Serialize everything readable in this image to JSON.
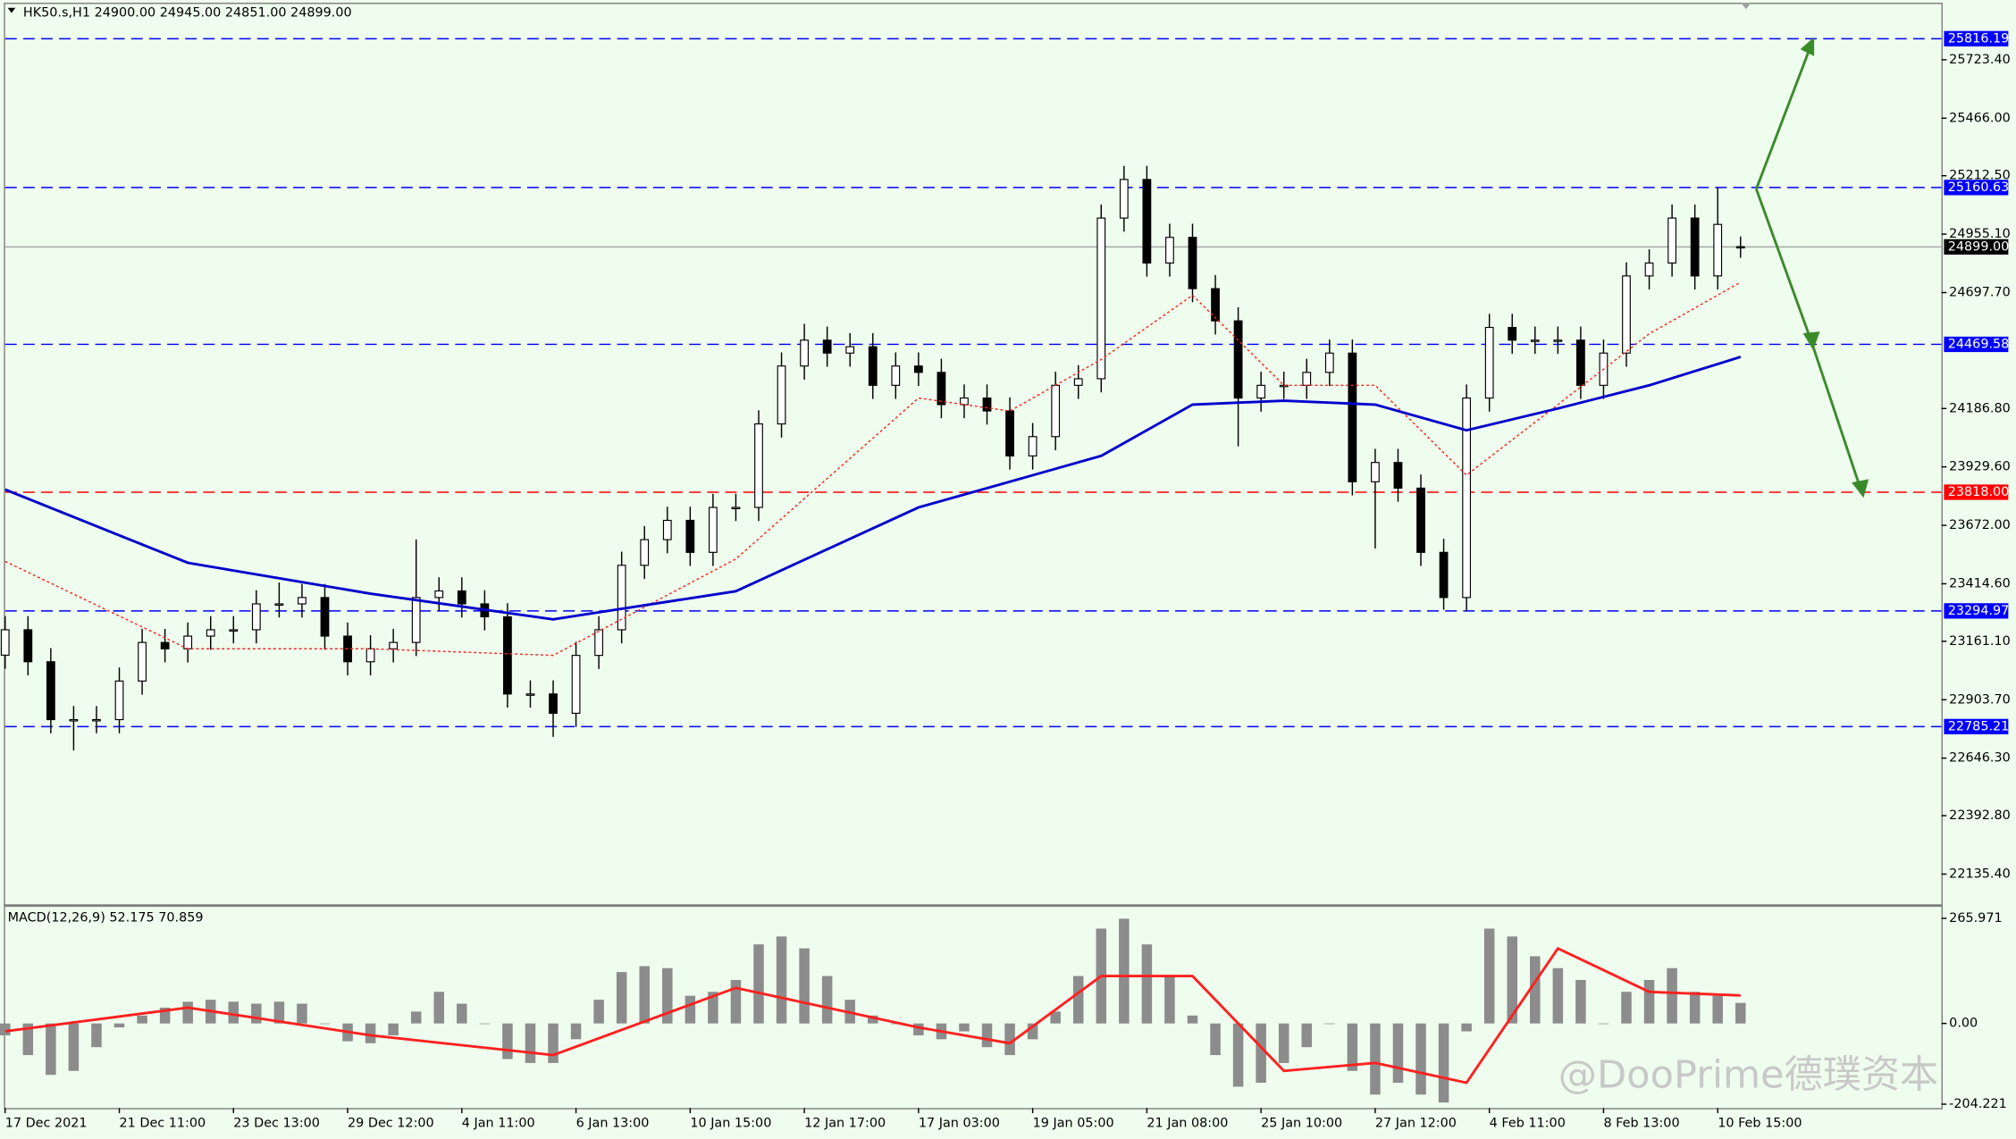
{
  "watermark": "@DooPrime德璞资本",
  "chart_data": [
    {
      "type": "candlestick",
      "title": "HK50.s,H1  24900.00 24945.00 24851.00 24899.00",
      "categories": [
        "17 Dec 2021",
        null,
        null,
        null,
        null,
        "21 Dec 11:00",
        null,
        null,
        null,
        null,
        "23 Dec 13:00",
        null,
        null,
        null,
        null,
        "29 Dec 12:00",
        null,
        null,
        null,
        null,
        "4 Jan 11:00",
        null,
        null,
        null,
        null,
        "6 Jan 13:00",
        null,
        null,
        null,
        null,
        "10 Jan 15:00",
        null,
        null,
        null,
        null,
        "12 Jan 17:00",
        null,
        null,
        null,
        null,
        "17 Jan 03:00",
        null,
        null,
        null,
        null,
        "19 Jan 05:00",
        null,
        null,
        null,
        null,
        "21 Jan 08:00",
        null,
        null,
        null,
        null,
        "25 Jan 10:00",
        null,
        null,
        null,
        null,
        "27 Jan 12:00",
        null,
        null,
        null,
        null,
        "4 Feb 11:00",
        null,
        null,
        null,
        null,
        "8 Feb 13:00",
        null,
        null,
        null,
        null,
        "10 Feb 15:00",
        null
      ],
      "open": [
        23100,
        23212,
        23071,
        22816,
        22816,
        22816,
        22986,
        23156,
        23128,
        23184,
        23212,
        23212,
        23326,
        23326,
        23354,
        23184,
        23071,
        23128,
        23156,
        23354,
        23383,
        23326,
        23269,
        22929,
        22929,
        22844,
        23099,
        23212,
        23496,
        23609,
        23694,
        23553,
        23751,
        23751,
        24119,
        24374,
        24488,
        24431,
        24459,
        24289,
        24374,
        24346,
        24204,
        24233,
        24176,
        23978,
        24063,
        24289,
        24318,
        25026,
        25196,
        24828,
        24941,
        24715,
        24573,
        24233,
        24289,
        24289,
        24346,
        24431,
        23864,
        23949,
        23836,
        23553,
        23354,
        24233,
        24544,
        24488,
        24488,
        24488,
        24289,
        24431,
        24771,
        24828,
        25026,
        24771,
        24900
      ],
      "high": [
        23272,
        23272,
        23131,
        22876,
        22876,
        23046,
        23216,
        23216,
        23244,
        23272,
        23272,
        23386,
        23420,
        23414,
        23414,
        23244,
        23188,
        23216,
        23610,
        23443,
        23443,
        23386,
        23329,
        22989,
        22989,
        23159,
        23272,
        23556,
        23669,
        23754,
        23754,
        23811,
        23811,
        24179,
        24434,
        24560,
        24548,
        24519,
        24519,
        24434,
        24434,
        24406,
        24293,
        24293,
        24236,
        24123,
        24349,
        24378,
        25086,
        25256,
        25256,
        25001,
        25001,
        24775,
        24633,
        24349,
        24349,
        24406,
        24491,
        24491,
        24009,
        24009,
        23896,
        23613,
        24293,
        24604,
        24604,
        24548,
        24548,
        24548,
        24491,
        24831,
        24888,
        25086,
        25086,
        25160,
        24945
      ],
      "low": [
        23040,
        23011,
        22756,
        22680,
        22756,
        22756,
        22926,
        23068,
        23068,
        23124,
        23152,
        23152,
        23266,
        23266,
        23124,
        23011,
        23011,
        23068,
        23096,
        23294,
        23266,
        23209,
        22869,
        22869,
        22740,
        22784,
        23039,
        23152,
        23436,
        23549,
        23493,
        23493,
        23691,
        23691,
        24059,
        24314,
        24371,
        24371,
        24229,
        24229,
        24286,
        24144,
        24144,
        24116,
        23918,
        23918,
        24003,
        24229,
        24258,
        24966,
        24768,
        24768,
        24655,
        24513,
        24020,
        24173,
        24229,
        24229,
        24286,
        23804,
        23570,
        23776,
        23493,
        23300,
        23294,
        24173,
        24428,
        24428,
        24428,
        24229,
        24229,
        24371,
        24711,
        24768,
        24711,
        24711,
        24851
      ],
      "close": [
        23212,
        23071,
        22816,
        22816,
        22816,
        22986,
        23156,
        23128,
        23184,
        23212,
        23212,
        23326,
        23326,
        23354,
        23184,
        23071,
        23128,
        23156,
        23354,
        23383,
        23326,
        23269,
        22929,
        22929,
        22844,
        23099,
        23212,
        23496,
        23609,
        23694,
        23553,
        23751,
        23751,
        24119,
        24374,
        24488,
        24431,
        24459,
        24289,
        24374,
        24346,
        24204,
        24233,
        24176,
        23978,
        24063,
        24289,
        24318,
        25026,
        25196,
        24828,
        24941,
        24715,
        24573,
        24233,
        24289,
        24289,
        24346,
        24431,
        23864,
        23949,
        23836,
        23553,
        23354,
        24233,
        24544,
        24488,
        24488,
        24488,
        24289,
        24431,
        24771,
        24828,
        25026,
        24771,
        24998,
        24899
      ],
      "bull_color": "#ffffff",
      "bear_color": "#000000",
      "wick_color": "#000000",
      "overlays": [
        {
          "type": "line",
          "color": "#ff2020",
          "dashed": true,
          "x": [
            0,
            8,
            16,
            24,
            32,
            40,
            44,
            48,
            52,
            56,
            60,
            64,
            68,
            72,
            76
          ],
          "values": [
            23513,
            23128,
            23128,
            23099,
            23524,
            24233,
            24176,
            24403,
            24686,
            24289,
            24289,
            23893,
            24204,
            24516,
            24743
          ]
        },
        {
          "type": "line",
          "color": "#0000cc",
          "dashed": false,
          "x": [
            0,
            8,
            16,
            24,
            32,
            40,
            44,
            48,
            52,
            56,
            60,
            64,
            68,
            72,
            76
          ],
          "values": [
            23830,
            23507,
            23371,
            23258,
            23382,
            23751,
            23864,
            23978,
            24204,
            24221,
            24204,
            24091,
            24187,
            24289,
            24414
          ]
        }
      ],
      "levels": {
        "values": [
          25816.19,
          25160.63,
          24469.58,
          23818,
          23294.97,
          22785.21
        ],
        "value_labels": [
          "25816.19",
          "25160.63",
          "24469.58",
          "23818.00",
          "23294.97",
          "22785.21"
        ],
        "colors": [
          "#0000ff",
          "#0000ff",
          "#0000ff",
          "#ff0000",
          "#0000ff",
          "#0000ff"
        ]
      },
      "current_price": {
        "value": 24899,
        "label": "24899.00"
      },
      "ylim": [
        22005,
        25975
      ],
      "yticks": [
        {
          "value": 25723.4,
          "label": "25723.40"
        },
        {
          "value": 25466,
          "label": "25466.00"
        },
        {
          "value": 25212.5,
          "label": "25212.50"
        },
        {
          "value": 24955.1,
          "label": "24955.10"
        },
        {
          "value": 24697.7,
          "label": "24697.70"
        },
        {
          "value": 24186.8,
          "label": "24186.80"
        },
        {
          "value": 23929.6,
          "label": "23929.60"
        },
        {
          "value": 23672,
          "label": "23672.00"
        },
        {
          "value": 23414.6,
          "label": "23414.60"
        },
        {
          "value": 23161.1,
          "label": "23161.10"
        },
        {
          "value": 22903.7,
          "label": "22903.70"
        },
        {
          "value": 22646.3,
          "label": "22646.30"
        },
        {
          "value": 22392.8,
          "label": "22392.80"
        },
        {
          "value": 22135.4,
          "label": "22135.40"
        }
      ]
    },
    {
      "type": "macd",
      "title": "MACD(12,26,9) 52.175 70.859",
      "color": "#8c8c8c",
      "values": [
        -30,
        -80,
        -130,
        -120,
        -60,
        -10,
        20,
        40,
        55,
        60,
        55,
        50,
        55,
        50,
        0,
        -45,
        -50,
        -30,
        30,
        80,
        50,
        0,
        -90,
        -100,
        -100,
        -40,
        60,
        130,
        145,
        140,
        70,
        80,
        110,
        200,
        220,
        190,
        120,
        60,
        20,
        0,
        -30,
        -40,
        -20,
        -60,
        -80,
        -40,
        30,
        120,
        240,
        265,
        200,
        120,
        20,
        -80,
        -160,
        -150,
        -100,
        -60,
        0,
        -120,
        -180,
        -150,
        -180,
        -200,
        -20,
        240,
        220,
        170,
        140,
        110,
        0,
        80,
        110,
        140,
        80,
        70,
        52
      ],
      "signal": {
        "color": "#ff2020",
        "x": [
          0,
          8,
          16,
          24,
          32,
          40,
          44,
          48,
          52,
          56,
          60,
          64,
          68,
          72,
          76
        ],
        "values": [
          -20,
          40,
          -30,
          -80,
          90,
          -10,
          -50,
          120,
          120,
          -120,
          -100,
          -150,
          190,
          80,
          71
        ]
      },
      "ylim": [
        -214,
        290
      ],
      "yticks": [
        265.971,
        {
          "value": 0,
          "label": "0.00"
        },
        -204.221
      ]
    }
  ]
}
